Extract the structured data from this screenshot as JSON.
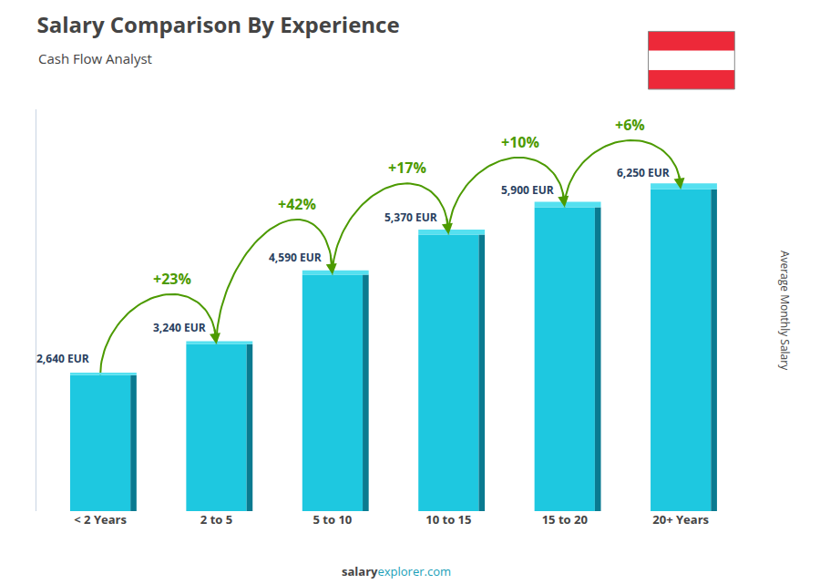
{
  "chart_data": {
    "type": "bar",
    "title": "Salary Comparison By Experience",
    "subtitle": "Cash Flow Analyst",
    "categories": [
      "< 2 Years",
      "2 to 5",
      "5 to 10",
      "10 to 15",
      "15 to 20",
      "20+ Years"
    ],
    "values": [
      2640,
      3240,
      4590,
      5370,
      5900,
      6250
    ],
    "value_labels": [
      "2,640 EUR",
      "3,240 EUR",
      "4,590 EUR",
      "5,370 EUR",
      "5,900 EUR",
      "6,250 EUR"
    ],
    "data_labels": true,
    "color": "#1EC8E0",
    "ylabel": "Average Monthly Salary",
    "ylim": [
      0,
      7800
    ],
    "tick_labels": "x",
    "grid": false,
    "annotations": [
      "+23%",
      "+42%",
      "+17%",
      "+10%",
      "+6%"
    ],
    "footer": [
      "salary",
      "explorer.com"
    ]
  }
}
